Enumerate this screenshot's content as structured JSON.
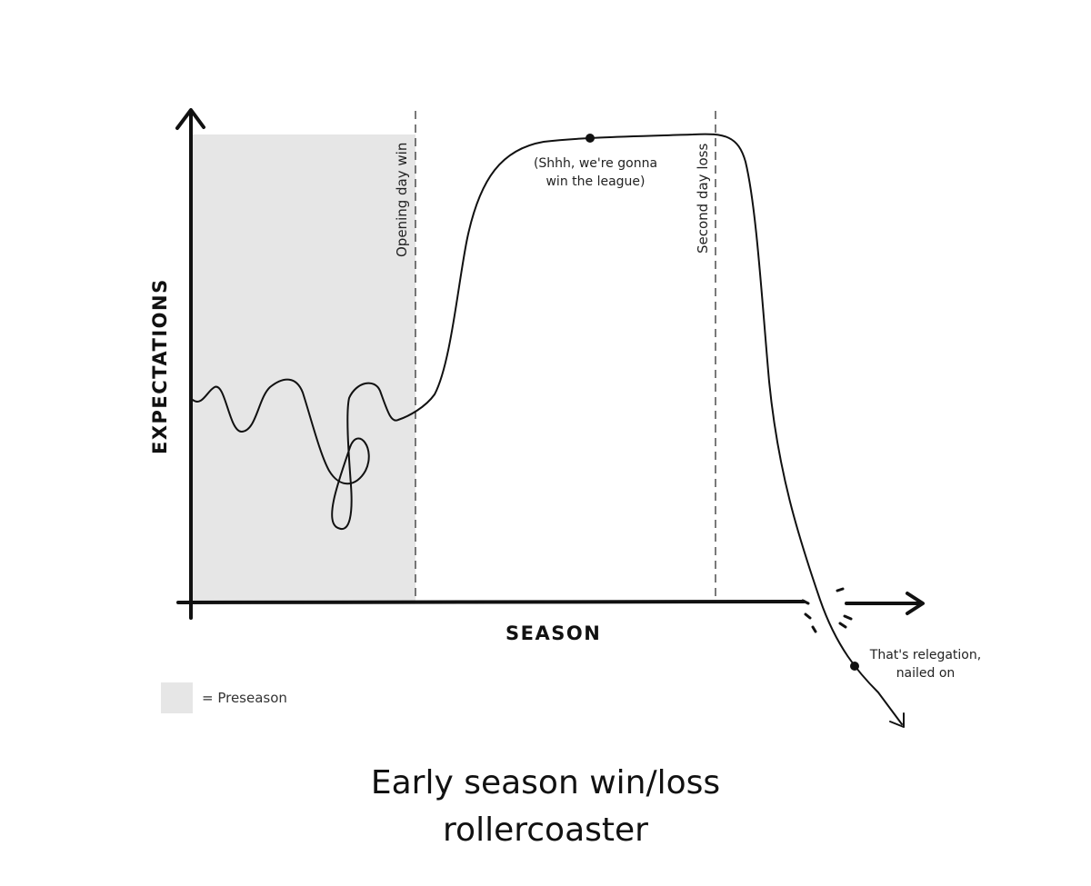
{
  "axes": {
    "ylabel": "EXPECTATIONS",
    "xlabel": "SEASON"
  },
  "events": {
    "opening_day": "Opening day win",
    "second_day": "Second day loss"
  },
  "annotations": {
    "peak_line1": "(Shhh, we're gonna",
    "peak_line2": "win the league)",
    "drop_line1": "That's relegation,",
    "drop_line2": "nailed on"
  },
  "legend": {
    "text": "= Preseason",
    "color": "#e6e6e6"
  },
  "title": {
    "line1": "Early season win/loss",
    "line2": "rollercoaster"
  }
}
